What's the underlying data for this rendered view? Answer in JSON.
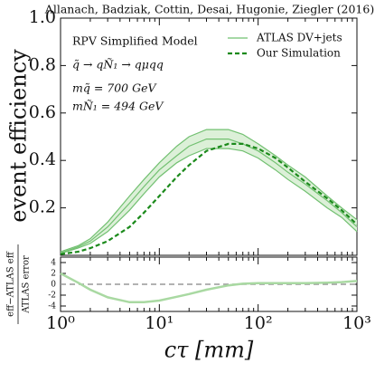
{
  "chart_data": [
    {
      "type": "line",
      "title": "Allanach, Badziak, Cottin, Desai, Hugonie, Ziegler (2016)",
      "ylabel": "event efficiency",
      "annotations": [
        "RPV Simplified Model",
        "q̃ → qÑ₁ → qμqq",
        "mq̃ = 700 GeV",
        "mÑ₁ = 494 GeV"
      ],
      "x": [
        1,
        1.5,
        2,
        3,
        5,
        7,
        10,
        15,
        20,
        30,
        50,
        70,
        100,
        150,
        200,
        300,
        500,
        700,
        1000
      ],
      "xlim": [
        1,
        1000
      ],
      "xscale": "log",
      "xticks": [
        1,
        10,
        100,
        1000
      ],
      "ylim": [
        0,
        1
      ],
      "yticks": [
        0.2,
        0.4,
        0.6,
        {
          "value": 1,
          "label": "1.0"
        },
        0.8
      ],
      "legend": "upper right",
      "series": [
        {
          "name": "ATLAS DV+jets",
          "color": "#72c071",
          "band_color": "#dcf0d8",
          "values": [
            0.01,
            0.035,
            0.06,
            0.12,
            0.22,
            0.29,
            0.36,
            0.42,
            0.46,
            0.49,
            0.49,
            0.47,
            0.44,
            0.39,
            0.35,
            0.3,
            0.23,
            0.18,
            0.12
          ],
          "upper": [
            0.015,
            0.04,
            0.07,
            0.14,
            0.25,
            0.32,
            0.39,
            0.46,
            0.5,
            0.53,
            0.53,
            0.51,
            0.47,
            0.42,
            0.38,
            0.33,
            0.25,
            0.2,
            0.15
          ],
          "lower": [
            0.008,
            0.03,
            0.05,
            0.1,
            0.19,
            0.26,
            0.33,
            0.39,
            0.42,
            0.45,
            0.45,
            0.44,
            0.41,
            0.36,
            0.32,
            0.27,
            0.2,
            0.16,
            0.1
          ]
        },
        {
          "name": "Our Simulation",
          "color": "#1b8a1b",
          "dashed": true,
          "values": [
            0.005,
            0.015,
            0.03,
            0.06,
            0.12,
            0.18,
            0.25,
            0.33,
            0.38,
            0.44,
            0.47,
            0.47,
            0.45,
            0.41,
            0.37,
            0.31,
            0.24,
            0.19,
            0.13
          ]
        }
      ]
    },
    {
      "type": "line",
      "xlabel": "cτ [mm]",
      "ylabel": [
        "eff−ATLAS eff",
        "ATLAS error"
      ],
      "x": [
        1,
        1.5,
        2,
        3,
        5,
        7,
        10,
        15,
        20,
        30,
        50,
        70,
        100,
        150,
        200,
        300,
        500,
        700,
        1000
      ],
      "xlim": [
        1,
        1000
      ],
      "xscale": "log",
      "xticks": [
        {
          "value": 1,
          "label": "10⁰"
        },
        {
          "value": 10,
          "label": "10¹"
        },
        {
          "value": 100,
          "label": "10²"
        },
        {
          "value": 1000,
          "label": "10³"
        }
      ],
      "ylim": [
        -5,
        5
      ],
      "yticks": [
        -4,
        -2,
        0,
        2,
        4
      ],
      "hline": 0,
      "hline_color": "#999999",
      "series": [
        {
          "color": "#a9d9a2",
          "values": [
            2,
            0.3,
            -1,
            -2.4,
            -3.3,
            -3.3,
            -3,
            -2.3,
            -1.8,
            -1,
            -0.2,
            0.1,
            0.2,
            0.2,
            0.2,
            0.2,
            0.3,
            0.4,
            0.6
          ]
        }
      ]
    }
  ]
}
